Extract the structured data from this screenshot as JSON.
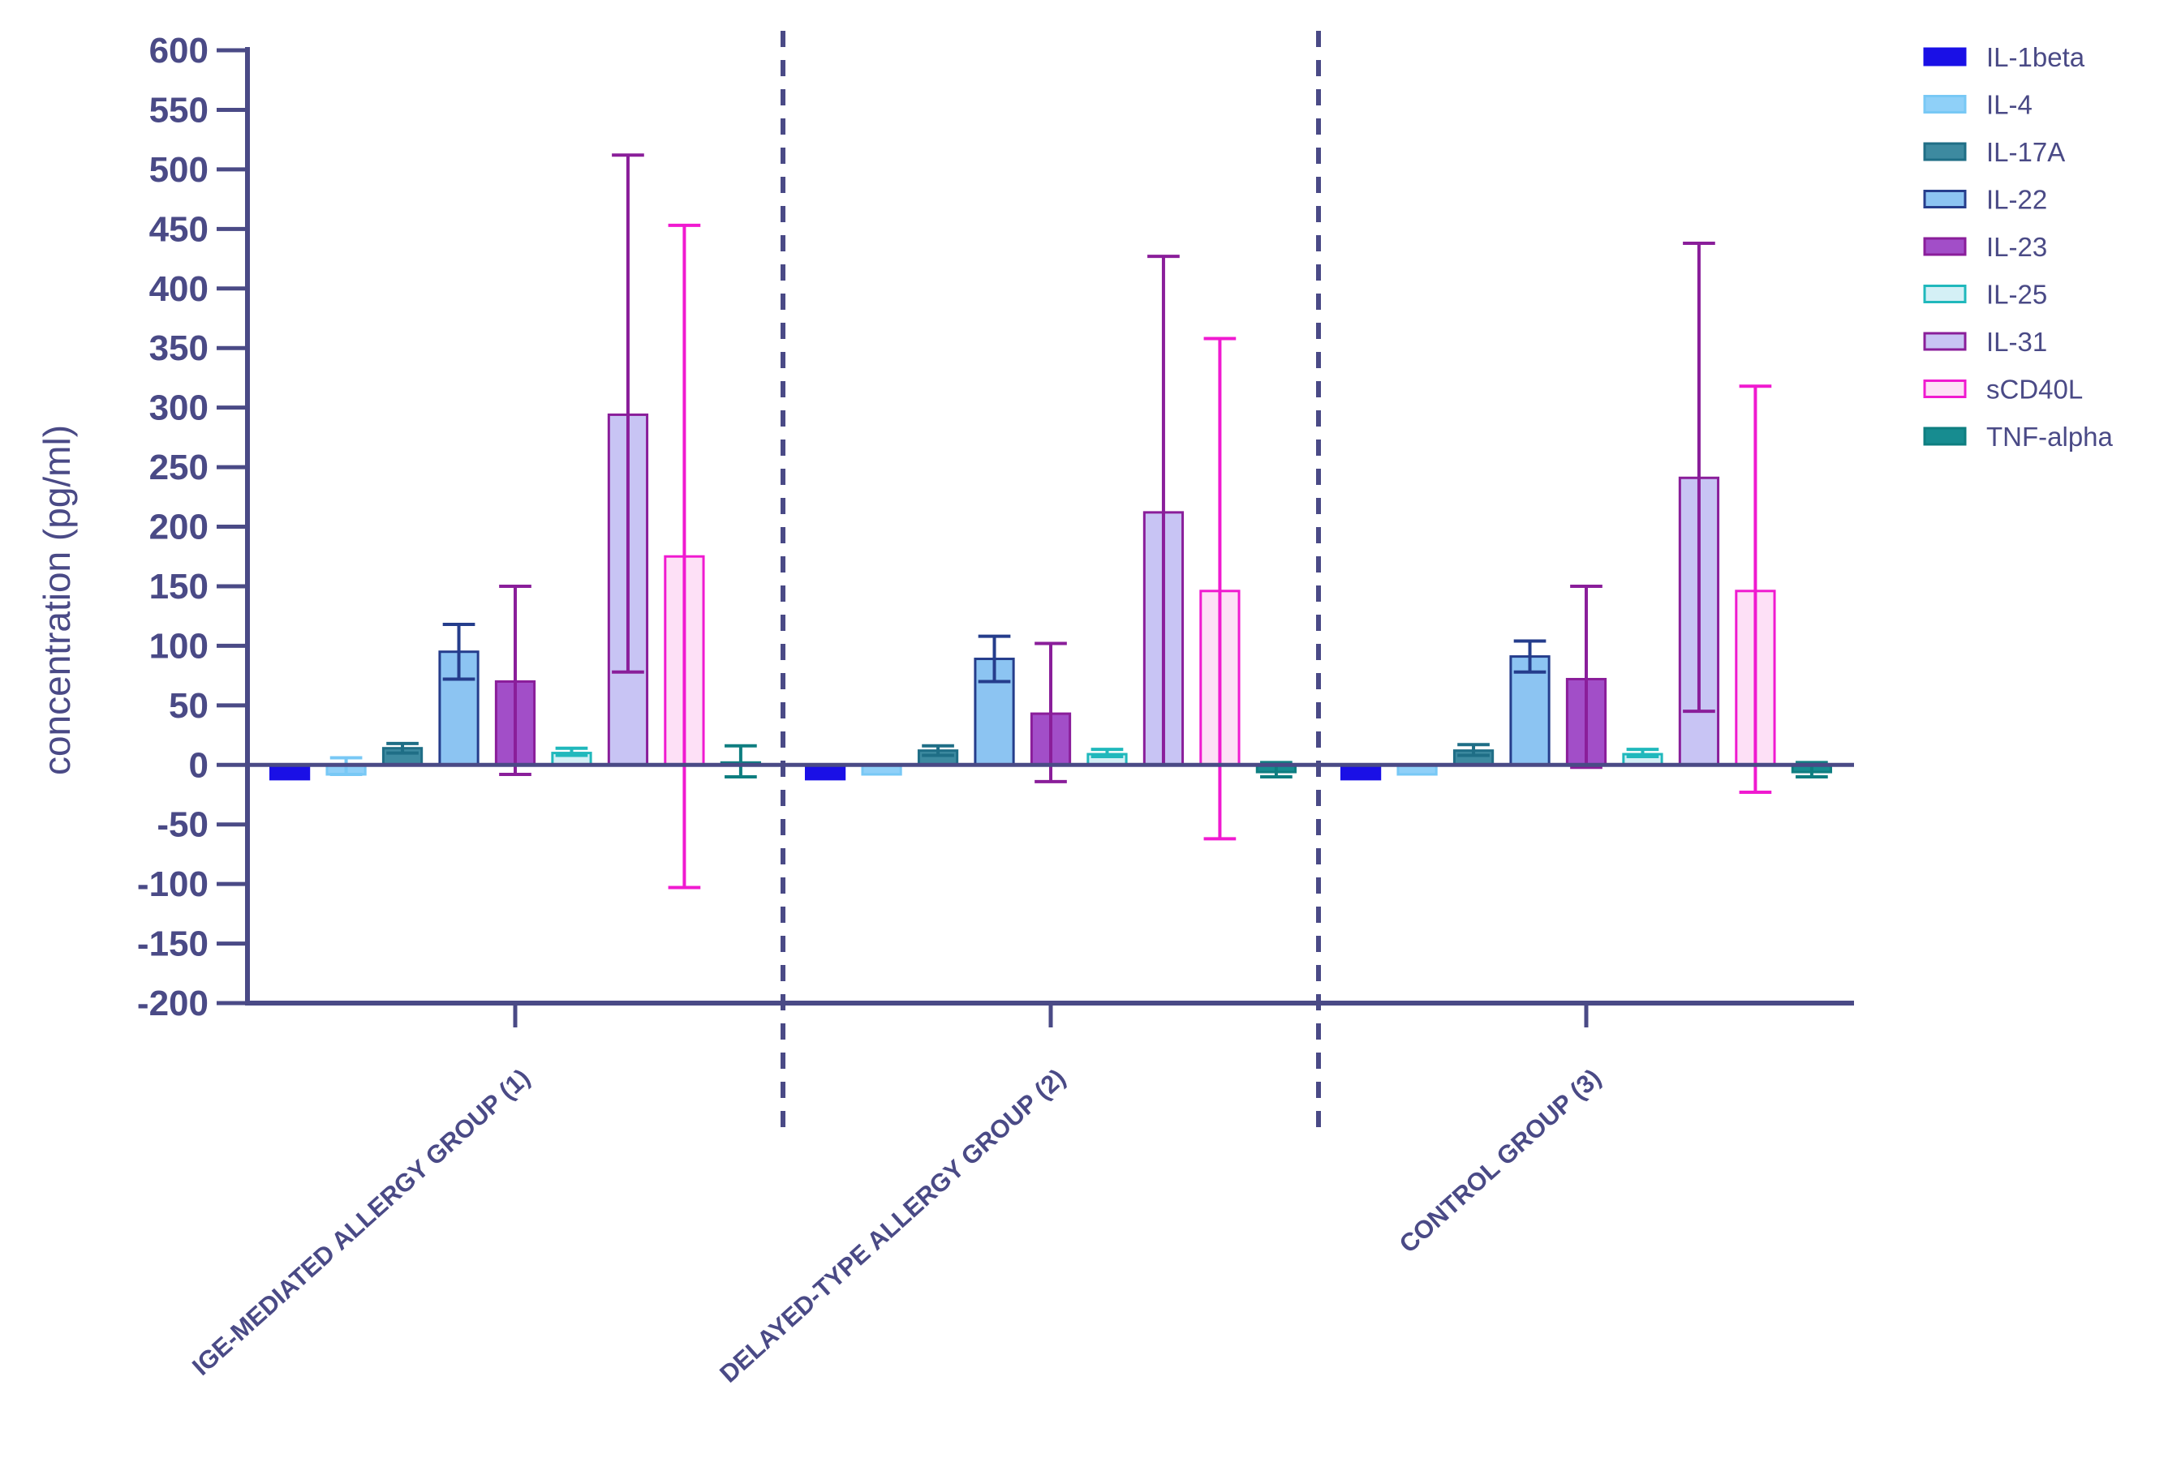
{
  "chart_data": {
    "type": "bar",
    "title": "",
    "xlabel": "",
    "ylabel": "concentration (pg/ml)",
    "ylim": [
      -200,
      600
    ],
    "yticks": [
      600,
      550,
      500,
      450,
      400,
      350,
      300,
      250,
      200,
      150,
      100,
      50,
      0,
      -50,
      -100,
      -150,
      -200
    ],
    "ytick_labels": [
      "600",
      "550",
      "500",
      "450",
      "400",
      "350",
      "300",
      "250",
      "200",
      "150",
      "100",
      "50",
      "0",
      "-50",
      "-100",
      "-150",
      "-200"
    ],
    "legend_position": "top-right",
    "categories": [
      "IGE-MEDIATED ALLERGY GROUP (1)",
      "DELAYED-TYPE ALLERGY GROUP (2)",
      "CONTROL GROUP (3)"
    ],
    "series": [
      {
        "name": "IL-1beta",
        "color": "#1a10e6",
        "fill": "#1a10e6",
        "values": [
          -12,
          -12,
          -12
        ],
        "err_low": [
          -12,
          -12,
          -12
        ],
        "err_high": [
          -12,
          -12,
          -12
        ]
      },
      {
        "name": "IL-4",
        "color": "#78c8f5",
        "fill": "#8fd0f8",
        "values": [
          -8,
          -8,
          -8
        ],
        "err_low": [
          -8,
          -8,
          -8
        ],
        "err_high": [
          6,
          -8,
          -8
        ]
      },
      {
        "name": "IL-17A",
        "color": "#1f6e86",
        "fill": "#3d8aa0",
        "values": [
          14,
          12,
          12
        ],
        "err_low": [
          10,
          8,
          8
        ],
        "err_high": [
          18,
          16,
          17
        ]
      },
      {
        "name": "IL-22",
        "color": "#253d8c",
        "fill": "#8cc4f2",
        "values": [
          95,
          89,
          91
        ],
        "err_low": [
          72,
          70,
          78
        ],
        "err_high": [
          118,
          108,
          104
        ]
      },
      {
        "name": "IL-23",
        "color": "#8a1e9a",
        "fill": "#a24ec8",
        "values": [
          70,
          43,
          72
        ],
        "err_low": [
          -8,
          -14,
          -2
        ],
        "err_high": [
          150,
          102,
          150
        ]
      },
      {
        "name": "IL-25",
        "color": "#20b8bc",
        "fill": "#d4f0f6",
        "values": [
          10,
          9,
          9
        ],
        "err_low": [
          8,
          7,
          7
        ],
        "err_high": [
          14,
          13,
          13
        ]
      },
      {
        "name": "IL-31",
        "color": "#8a1e9a",
        "fill": "#c8c4f4",
        "values": [
          294,
          212,
          241
        ],
        "err_low": [
          78,
          0,
          45
        ],
        "err_high": [
          512,
          427,
          438
        ]
      },
      {
        "name": "sCD40L",
        "color": "#f01ad0",
        "fill": "#fde0f6",
        "values": [
          175,
          146,
          146
        ],
        "err_low": [
          -103,
          -62,
          -23
        ],
        "err_high": [
          453,
          358,
          318
        ]
      },
      {
        "name": "TNF-alpha",
        "color": "#0e7e80",
        "fill": "#178c90",
        "values": [
          2,
          -6,
          -6
        ],
        "err_low": [
          -10,
          -10,
          -10
        ],
        "err_high": [
          16,
          2,
          2
        ]
      }
    ]
  }
}
